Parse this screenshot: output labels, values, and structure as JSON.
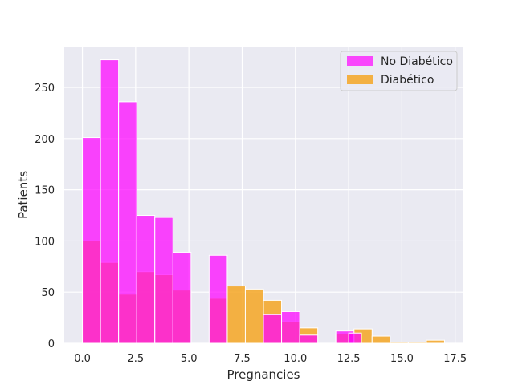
{
  "chart_data": {
    "type": "bar",
    "title": "",
    "xlabel": "Pregnancies",
    "ylabel": "Patients",
    "xlim": [
      -0.85,
      17.85
    ],
    "ylim": [
      0,
      290
    ],
    "xticks": [
      0.0,
      2.5,
      5.0,
      7.5,
      10.0,
      12.5,
      15.0,
      17.5
    ],
    "xtick_labels": [
      "0.0",
      "2.5",
      "5.0",
      "7.5",
      "10.0",
      "12.5",
      "15.0",
      "17.5"
    ],
    "yticks": [
      0,
      50,
      100,
      150,
      200,
      250
    ],
    "ytick_labels": [
      "0",
      "50",
      "100",
      "150",
      "200",
      "250"
    ],
    "grid": true,
    "legend_position": "top-right",
    "background": "#eaeaf2",
    "series": [
      {
        "name": "No Diabético",
        "color": "#ff00ff",
        "bins": [
          {
            "x0": 0.0,
            "x1": 0.85,
            "count": 201
          },
          {
            "x0": 0.85,
            "x1": 1.7,
            "count": 277
          },
          {
            "x0": 1.7,
            "x1": 2.55,
            "count": 0
          },
          {
            "x0": 2.55,
            "x1": 3.4,
            "count": 125
          },
          {
            "x0": 3.4,
            "x1": 4.25,
            "count": 0
          },
          {
            "x0": 4.25,
            "x1": 5.1,
            "count": 89
          },
          {
            "x0": 5.1,
            "x1": 5.95,
            "count": 0
          },
          {
            "x0": 5.95,
            "x1": 6.8,
            "count": 86
          },
          {
            "x0": 6.8,
            "x1": 7.65,
            "count": 0
          },
          {
            "x0": 7.65,
            "x1": 8.5,
            "count": 0
          },
          {
            "x0": 8.5,
            "x1": 9.35,
            "count": 28
          },
          {
            "x0": 9.35,
            "x1": 10.2,
            "count": 31
          },
          {
            "x0": 10.2,
            "x1": 11.05,
            "count": 0
          },
          {
            "x0": 11.05,
            "x1": 11.9,
            "count": 0
          },
          {
            "x0": 11.9,
            "x1": 12.75,
            "count": 12
          },
          {
            "x0": 12.75,
            "x1": 13.6,
            "count": 0
          }
        ]
      },
      {
        "name": "Diabético",
        "color": "#f5a623",
        "bins": [
          {
            "x0": 0.0,
            "x1": 0.85,
            "count": 100
          },
          {
            "x0": 0.85,
            "x1": 1.7,
            "count": 79
          },
          {
            "x0": 1.7,
            "x1": 2.55,
            "count": 48
          },
          {
            "x0": 2.55,
            "x1": 3.4,
            "count": 70
          },
          {
            "x0": 3.4,
            "x1": 4.25,
            "count": 67
          },
          {
            "x0": 4.25,
            "x1": 5.1,
            "count": 52
          },
          {
            "x0": 5.1,
            "x1": 5.95,
            "count": 0
          },
          {
            "x0": 5.95,
            "x1": 6.8,
            "count": 44
          },
          {
            "x0": 6.8,
            "x1": 7.65,
            "count": 56
          },
          {
            "x0": 7.65,
            "x1": 8.5,
            "count": 53
          },
          {
            "x0": 8.5,
            "x1": 9.35,
            "count": 42
          },
          {
            "x0": 9.35,
            "x1": 10.2,
            "count": 21
          },
          {
            "x0": 10.2,
            "x1": 11.05,
            "count": 15
          },
          {
            "x0": 11.05,
            "x1": 11.9,
            "count": 0
          },
          {
            "x0": 11.9,
            "x1": 12.75,
            "count": 9
          },
          {
            "x0": 12.75,
            "x1": 13.6,
            "count": 14
          },
          {
            "x0": 13.6,
            "x1": 14.45,
            "count": 7
          },
          {
            "x0": 14.45,
            "x1": 15.3,
            "count": 1
          },
          {
            "x0": 15.3,
            "x1": 16.15,
            "count": 1
          },
          {
            "x0": 16.15,
            "x1": 17.0,
            "count": 3
          }
        ]
      },
      {
        "name": "",
        "color": "#ff00ff",
        "bins": [
          {
            "x0": 1.7,
            "x1": 2.55,
            "count": 236
          },
          {
            "x0": 3.4,
            "x1": 4.25,
            "count": 123
          },
          {
            "x0": 10.2,
            "x1": 11.05,
            "count": 8
          },
          {
            "x0": 12.5,
            "x1": 13.1,
            "count": 10
          }
        ]
      }
    ]
  }
}
